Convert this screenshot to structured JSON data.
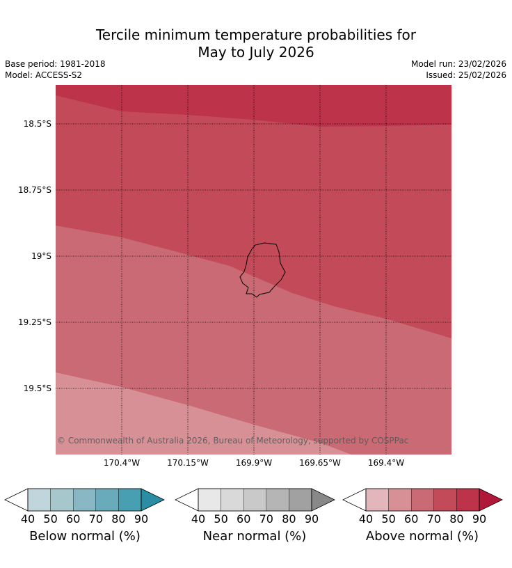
{
  "header": {
    "title_line1": "Tercile minimum temperature probabilities for",
    "title_line2": "May to July 2026",
    "base_period": "Base period: 1981-2018",
    "model": "Model: ACCESS-S2",
    "model_run": "Model run: 23/02/2026",
    "issued": "Issued: 25/02/2026"
  },
  "map": {
    "lat_labels": [
      "18.5°S",
      "18.75°S",
      "19°S",
      "19.25°S",
      "19.5°S"
    ],
    "lon_labels": [
      "170.4°W",
      "170.15°W",
      "169.9°W",
      "169.65°W",
      "169.4°W"
    ],
    "copyright": "© Commonwealth of Australia 2026, Bureau of Meteorology, supported by COSPPac",
    "region_colors": {
      "above_80": "#bd3349",
      "above_70": "#c24a59",
      "above_60": "#c96a74",
      "above_50": "#d69096"
    }
  },
  "colorbars": [
    {
      "name": "below",
      "label": "Below normal (%)",
      "ticks": [
        "40",
        "50",
        "60",
        "70",
        "80",
        "90"
      ],
      "colors": [
        "#c0d5dc",
        "#a6c7cc",
        "#89b7c3",
        "#6aabbb",
        "#479fb1",
        "#2a8da3"
      ]
    },
    {
      "name": "near",
      "label": "Near normal (%)",
      "ticks": [
        "40",
        "50",
        "60",
        "70",
        "80",
        "90"
      ],
      "colors": [
        "#e8e8e8",
        "#d9d9d9",
        "#c9c9c9",
        "#b5b5b5",
        "#a1a1a1",
        "#888888"
      ]
    },
    {
      "name": "above",
      "label": "Above normal (%)",
      "ticks": [
        "40",
        "50",
        "60",
        "70",
        "80",
        "90"
      ],
      "colors": [
        "#e3b6bb",
        "#d69096",
        "#c96a74",
        "#c24a59",
        "#bd3349",
        "#b0183a"
      ]
    }
  ]
}
